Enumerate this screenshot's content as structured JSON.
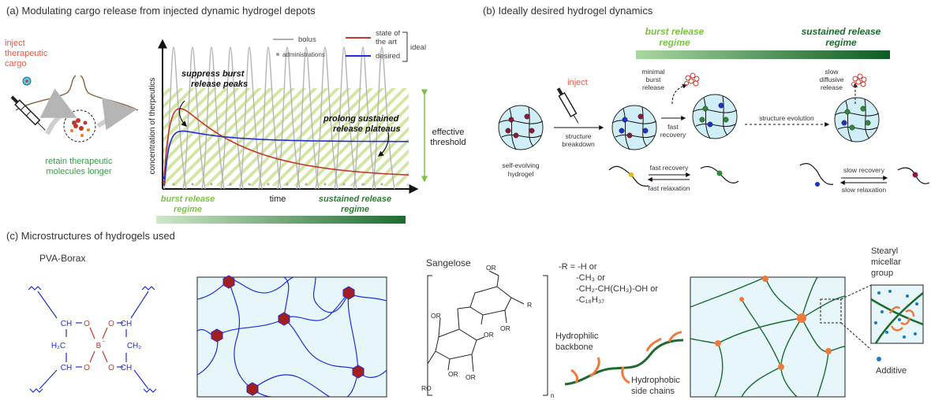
{
  "panel_a": {
    "title": "(a) Modulating cargo release from injected dynamic hydrogel depots",
    "inject_line1": "inject",
    "inject_line2": "therapeutic",
    "inject_line3": "cargo",
    "retain_line1": "retain therapeutic",
    "retain_line2": "molecules longer",
    "legend_bolus": "bolus",
    "legend_admin": "administrations",
    "legend_sota1": "state of",
    "legend_sota2": "the art",
    "legend_desired": "desired",
    "legend_ideal": "ideal",
    "suppress1": "suppress burst",
    "suppress2": "release peaks",
    "prolong1": "prolong sustained",
    "prolong2": "release plateaus",
    "effective1": "effective",
    "effective2": "threshold",
    "ylabel": "concentration of therpeutics",
    "xlabel": "time",
    "burst1": "burst release",
    "burst2": "regime",
    "sustained1": "sustained release",
    "sustained2": "regime",
    "colors": {
      "bolus": "#b0b0b0",
      "sota": "#c0392b",
      "desired": "#1f2fd0",
      "green": "#2e7d32",
      "hatch": "#c6dd8a"
    }
  },
  "panel_b": {
    "title": "(b) Ideally desired hydrogel dynamics",
    "burst1": "burst release",
    "burst2": "regime",
    "sustained1": "sustained release",
    "sustained2": "regime",
    "inject": "inject",
    "minimal1": "minimal",
    "minimal2": "burst",
    "minimal3": "release",
    "slowdiff1": "slow",
    "slowdiff2": "diffusive",
    "slowdiff3": "release",
    "selfev1": "self-evolving",
    "selfev2": "hydrogel",
    "breakdown1": "structure",
    "breakdown2": "breakdown",
    "fastrec1": "fast",
    "fastrec2": "recovery",
    "evolution": "structure evolution",
    "fast_recovery": "fast recovery",
    "fast_relaxation": "fast relaxation",
    "slow_recovery": "slow recovery",
    "slow_relaxation": "slow relaxation"
  },
  "panel_c": {
    "title": "(c) Microstructures of hydrogels used",
    "pva_title": "PVA-Borax",
    "sangelose_title": "Sangelose",
    "r_line1": "-R = -H or",
    "r_line2": "-CH₃ or",
    "r_line3": "-CH₂-CH(CH₃)-OH  or",
    "r_line4": "-C₁₈H₃₇",
    "hydrophilic1": "Hydrophilic",
    "hydrophilic2": "backbone",
    "hydrophobic1": "Hydrophobic",
    "hydrophobic2": "side chains",
    "stearyl1": "Stearyl",
    "stearyl2": "micellar",
    "stearyl3": "group",
    "additive": "Additive",
    "ch": "CH",
    "h2c": "H₂C",
    "ch2": "CH₂",
    "o": "O",
    "b": "B",
    "minus": "−",
    "or": "OR",
    "ro": "RO",
    "r": "R",
    "n": "n"
  }
}
